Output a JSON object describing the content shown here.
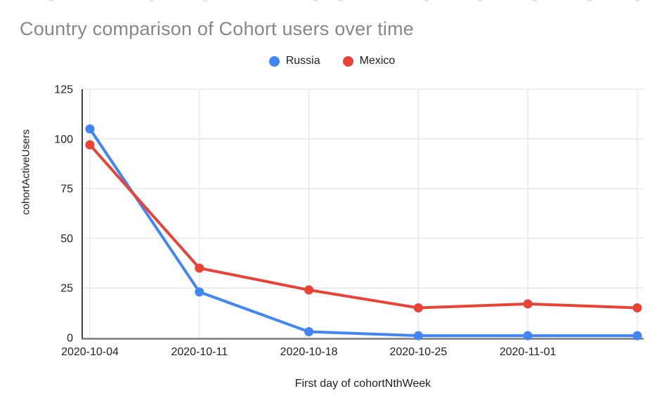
{
  "chart_data": {
    "type": "line",
    "title": "Country comparison of Cohort users over time",
    "xlabel": "First day of cohortNthWeek",
    "ylabel": "cohortActiveUsers",
    "categories": [
      "2020-10-04",
      "2020-10-11",
      "2020-10-18",
      "2020-10-25",
      "2020-11-01",
      ""
    ],
    "y_ticks": [
      0,
      25,
      50,
      75,
      100,
      125
    ],
    "ylim": [
      0,
      125
    ],
    "grid": true,
    "legend_position": "top-center",
    "series": [
      {
        "name": "Russia",
        "color": "#4285f4",
        "values": [
          105,
          23,
          3,
          1,
          1,
          1
        ]
      },
      {
        "name": "Mexico",
        "color": "#ea4335",
        "values": [
          97,
          35,
          24,
          15,
          17,
          15
        ]
      }
    ],
    "colors": {
      "title_text": "#85878a",
      "axis_text": "#202124",
      "gridline": "#e6e6e6",
      "y_axis_line": "#424242",
      "x_axis_line": "#7a7a7a",
      "background": "#ffffff"
    }
  },
  "top_edge_marks": {
    "color": "#e2e5e9",
    "positions": [
      70,
      213,
      289,
      446,
      482,
      604,
      680,
      758,
      836,
      904
    ]
  }
}
